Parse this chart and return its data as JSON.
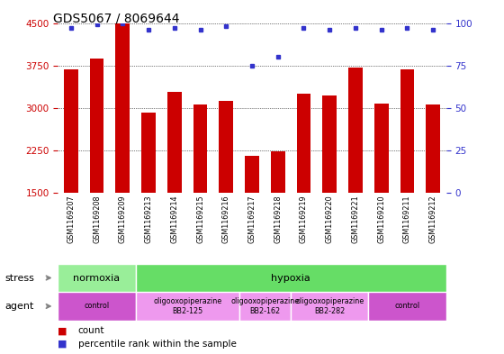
{
  "title": "GDS5067 / 8069644",
  "samples": [
    "GSM1169207",
    "GSM1169208",
    "GSM1169209",
    "GSM1169213",
    "GSM1169214",
    "GSM1169215",
    "GSM1169216",
    "GSM1169217",
    "GSM1169218",
    "GSM1169219",
    "GSM1169220",
    "GSM1169221",
    "GSM1169210",
    "GSM1169211",
    "GSM1169212"
  ],
  "counts": [
    3680,
    3880,
    4500,
    2920,
    3280,
    3060,
    3130,
    2160,
    2240,
    3260,
    3220,
    3720,
    3080,
    3680,
    3060
  ],
  "percentiles": [
    97,
    99,
    100,
    96,
    97,
    96,
    98,
    75,
    80,
    97,
    96,
    97,
    96,
    97,
    96
  ],
  "bar_color": "#cc0000",
  "dot_color": "#3333cc",
  "ylim_left": [
    1500,
    4500
  ],
  "ylim_right": [
    0,
    100
  ],
  "yticks_left": [
    1500,
    2250,
    3000,
    3750,
    4500
  ],
  "yticks_right": [
    0,
    25,
    50,
    75,
    100
  ],
  "stress_groups": [
    {
      "label": "normoxia",
      "start": 0,
      "end": 3,
      "color": "#99ee99"
    },
    {
      "label": "hypoxia",
      "start": 3,
      "end": 15,
      "color": "#66dd66"
    }
  ],
  "agent_groups": [
    {
      "label": "control",
      "start": 0,
      "end": 3,
      "color": "#cc55cc"
    },
    {
      "label": "oligooxopiperazine\nBB2-125",
      "start": 3,
      "end": 7,
      "color": "#ee99ee"
    },
    {
      "label": "oligooxopiperazine\nBB2-162",
      "start": 7,
      "end": 9,
      "color": "#ee99ee"
    },
    {
      "label": "oligooxopiperazine\nBB2-282",
      "start": 9,
      "end": 12,
      "color": "#ee99ee"
    },
    {
      "label": "control",
      "start": 12,
      "end": 15,
      "color": "#cc55cc"
    }
  ],
  "stress_row_label": "stress",
  "agent_row_label": "agent",
  "legend_count_label": "count",
  "legend_pct_label": "percentile rank within the sample",
  "bg_color": "#ffffff",
  "tick_label_color_left": "#cc0000",
  "tick_label_color_right": "#3333cc",
  "label_area_color": "#cccccc",
  "label_divider_color": "#aaaaaa"
}
